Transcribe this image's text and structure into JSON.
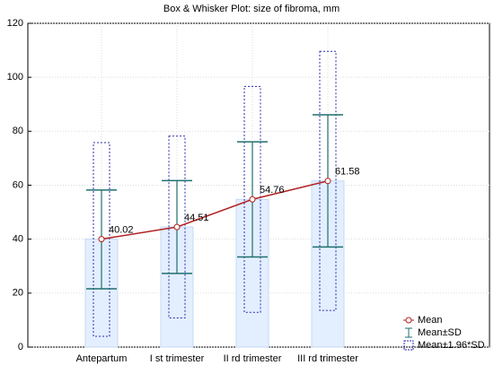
{
  "chart_data": {
    "type": "box-whisker",
    "title": "Box & Whisker Plot: size of fibroma, mm",
    "categories": [
      "Antepartum",
      "I st trimester",
      "II rd trimester",
      "III rd trimester"
    ],
    "bar_color": "#e3efff",
    "series": [
      {
        "name": "Mean",
        "color": "#b22222",
        "values": [
          40.02,
          44.51,
          54.76,
          61.58
        ]
      },
      {
        "name": "Mean±SD",
        "color": "#1f6f6f",
        "low": [
          21.6,
          27.3,
          33.4,
          37.1
        ],
        "high": [
          58.2,
          61.7,
          76.1,
          86.1
        ]
      },
      {
        "name": "Mean±1.96*SD",
        "color": "#2b2bb0",
        "low": [
          4.0,
          10.8,
          12.9,
          13.6
        ],
        "high": [
          75.8,
          78.2,
          96.6,
          109.6
        ]
      }
    ],
    "ylim": [
      0,
      120
    ],
    "yticks": [
      0,
      20,
      40,
      60,
      80,
      100,
      120
    ],
    "grid": true
  }
}
